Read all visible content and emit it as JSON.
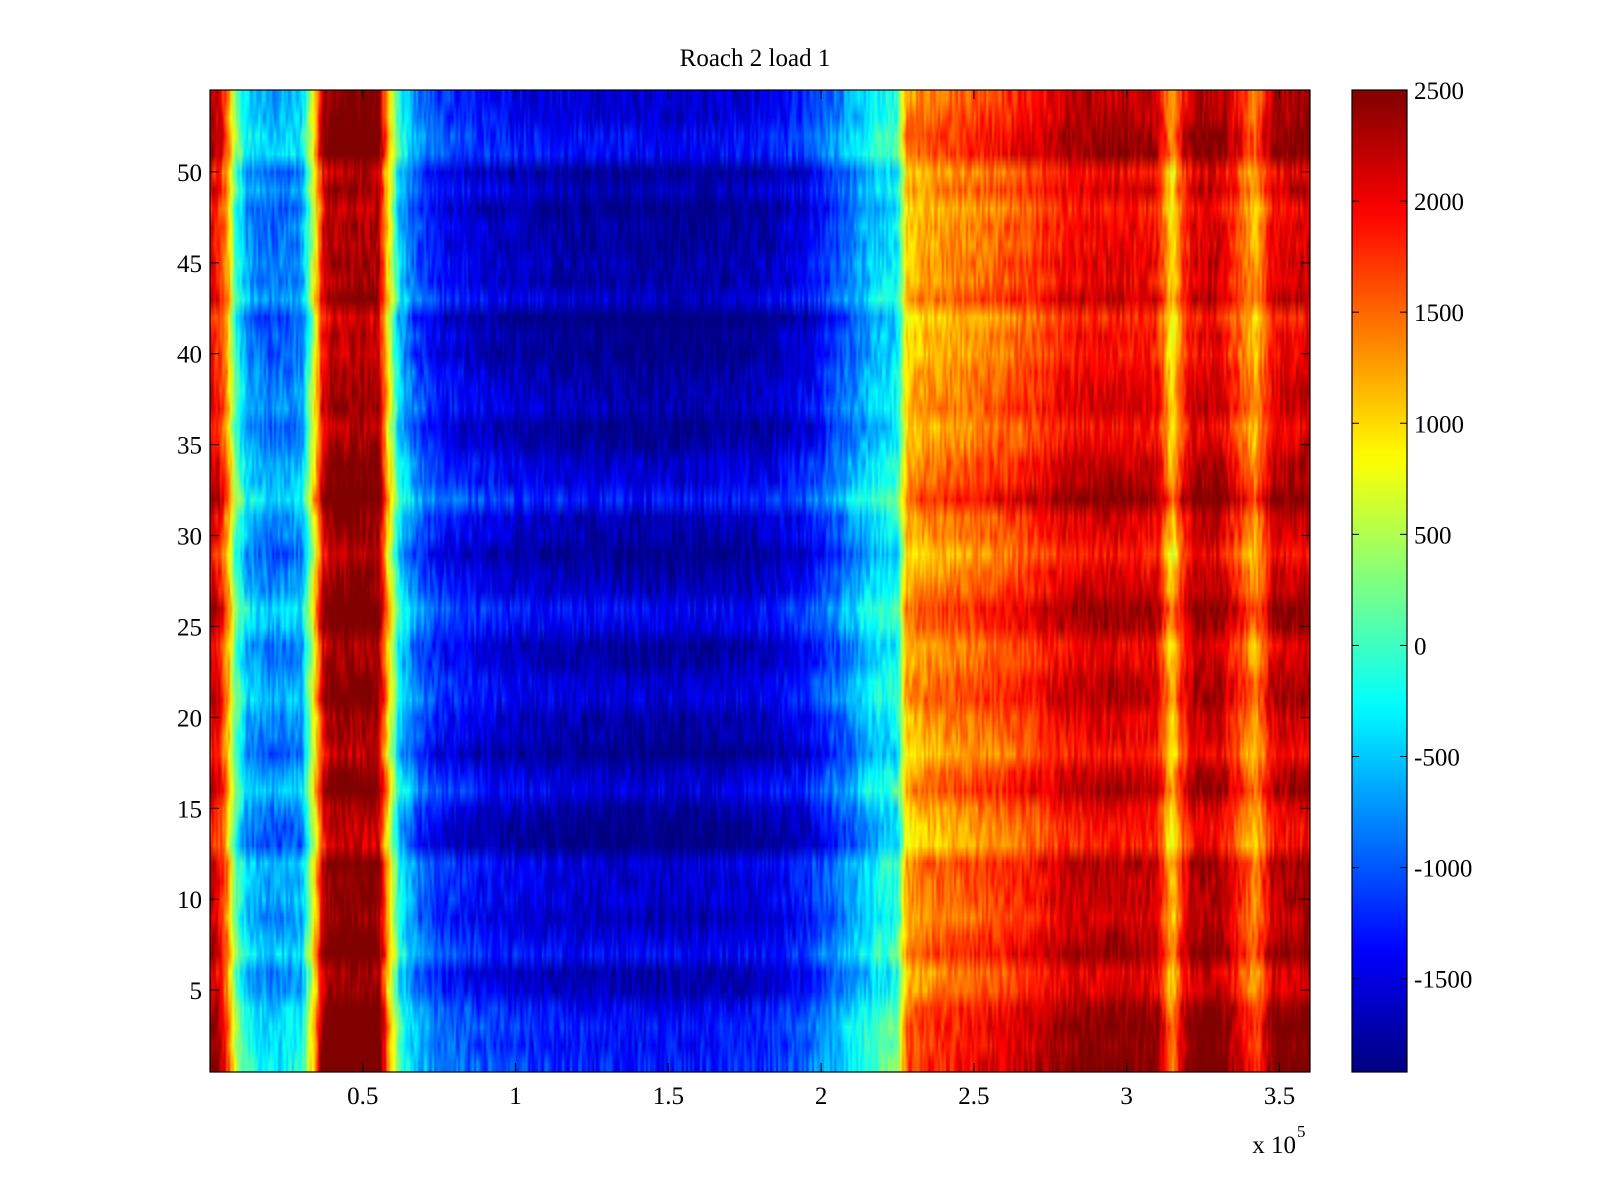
{
  "chart_data": {
    "type": "heatmap",
    "title": "Roach 2 load 1",
    "xlabel": "",
    "ylabel": "",
    "x_exponent_label": {
      "base": "x 10",
      "exponent": "5"
    },
    "xlim": [
      0,
      3.6
    ],
    "ylim": [
      0.5,
      54.5
    ],
    "x_ticks": [
      0.5,
      1,
      1.5,
      2,
      2.5,
      3,
      3.5
    ],
    "x_tick_labels": [
      "0.5",
      "1",
      "1.5",
      "2",
      "2.5",
      "3",
      "3.5"
    ],
    "y_ticks": [
      5,
      10,
      15,
      20,
      25,
      30,
      35,
      40,
      45,
      50
    ],
    "y_tick_labels": [
      "5",
      "10",
      "15",
      "20",
      "25",
      "30",
      "35",
      "40",
      "45",
      "50"
    ],
    "rows": 54,
    "colorbar": {
      "colormap": "jet",
      "range": [
        -1920,
        2500
      ],
      "ticks": [
        -1500,
        -1000,
        -500,
        0,
        500,
        1000,
        1500,
        2000,
        2500
      ],
      "tick_labels": [
        "-1500",
        "-1000",
        "-500",
        "0",
        "500",
        "1000",
        "1500",
        "2000",
        "2500"
      ]
    },
    "column_profile": {
      "x": [
        0.0,
        0.03,
        0.06,
        0.08,
        0.12,
        0.2,
        0.3,
        0.34,
        0.37,
        0.4,
        0.45,
        0.55,
        0.58,
        0.62,
        0.68,
        0.75,
        0.9,
        1.0,
        1.2,
        1.4,
        1.6,
        1.8,
        1.95,
        2.05,
        2.12,
        2.18,
        2.25,
        2.28,
        2.35,
        2.45,
        2.6,
        2.7,
        2.8,
        2.95,
        3.1,
        3.15,
        3.18,
        3.22,
        3.3,
        3.38,
        3.42,
        3.48,
        3.6
      ],
      "values": [
        2200,
        2000,
        1300,
        300,
        -500,
        -750,
        -600,
        800,
        2200,
        2500,
        2500,
        2500,
        1200,
        -300,
        -900,
        -1200,
        -1400,
        -1500,
        -1600,
        -1650,
        -1650,
        -1550,
        -1300,
        -900,
        -600,
        -300,
        -150,
        1200,
        1400,
        1500,
        1700,
        1850,
        2100,
        2200,
        2100,
        1000,
        1800,
        2250,
        2300,
        1700,
        1300,
        2200,
        2300
      ]
    },
    "row_offsets": [
      400,
      300,
      350,
      250,
      -50,
      -100,
      250,
      100,
      -50,
      50,
      50,
      100,
      -350,
      -300,
      -150,
      150,
      0,
      -300,
      -150,
      -100,
      100,
      50,
      -100,
      -150,
      150,
      250,
      0,
      -100,
      -300,
      -100,
      -50,
      350,
      100,
      50,
      -150,
      -250,
      -50,
      -100,
      -150,
      -300,
      -250,
      -400,
      50,
      -150,
      -100,
      -200,
      -150,
      -300,
      -50,
      -250,
      250,
      250,
      100,
      50
    ]
  }
}
